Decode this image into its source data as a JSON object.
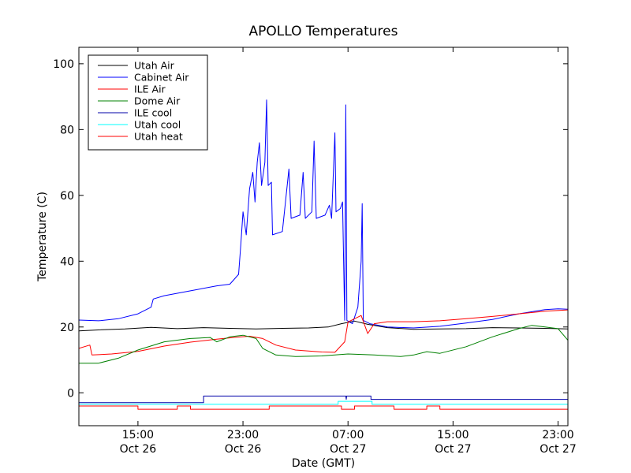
{
  "chart_data": {
    "type": "line",
    "title": "APOLLO Temperatures",
    "xlabel": "Date (GMT)",
    "ylabel": "Temperature (C)",
    "x_domain": [
      "2008-10-26T10:30",
      "2008-10-27T23:45"
    ],
    "ylim": [
      -10,
      105
    ],
    "grid": false,
    "legend_position": "top-left",
    "x_ticks": [
      {
        "t": "2008-10-26T15:00",
        "line1": "15:00",
        "line2": "Oct 26"
      },
      {
        "t": "2008-10-26T23:00",
        "line1": "23:00",
        "line2": "Oct 26"
      },
      {
        "t": "2008-10-27T07:00",
        "line1": "07:00",
        "line2": "Oct 27"
      },
      {
        "t": "2008-10-27T15:00",
        "line1": "15:00",
        "line2": "Oct 27"
      },
      {
        "t": "2008-10-27T23:00",
        "line1": "23:00",
        "line2": "Oct 27"
      }
    ],
    "y_ticks": [
      0,
      20,
      40,
      60,
      80,
      100
    ],
    "series": [
      {
        "name": "Utah Air",
        "color": "#000000",
        "points": [
          [
            "2008-10-26T10:30",
            18.8
          ],
          [
            "2008-10-26T12:00",
            19.1
          ],
          [
            "2008-10-26T14:00",
            19.4
          ],
          [
            "2008-10-26T16:00",
            19.9
          ],
          [
            "2008-10-26T18:00",
            19.5
          ],
          [
            "2008-10-26T20:00",
            19.8
          ],
          [
            "2008-10-26T22:00",
            19.6
          ],
          [
            "2008-10-27T00:00",
            19.4
          ],
          [
            "2008-10-27T02:00",
            19.6
          ],
          [
            "2008-10-27T04:00",
            19.7
          ],
          [
            "2008-10-27T05:30",
            20.0
          ],
          [
            "2008-10-27T06:30",
            21.0
          ],
          [
            "2008-10-27T07:30",
            21.8
          ],
          [
            "2008-10-27T08:30",
            20.8
          ],
          [
            "2008-10-27T10:00",
            19.8
          ],
          [
            "2008-10-27T12:00",
            19.3
          ],
          [
            "2008-10-27T14:00",
            19.4
          ],
          [
            "2008-10-27T16:00",
            19.5
          ],
          [
            "2008-10-27T18:00",
            19.8
          ],
          [
            "2008-10-27T20:00",
            19.7
          ],
          [
            "2008-10-27T22:00",
            19.6
          ],
          [
            "2008-10-27T23:45",
            19.4
          ]
        ]
      },
      {
        "name": "Cabinet Air",
        "color": "#0000ff",
        "points": [
          [
            "2008-10-26T10:30",
            22.1
          ],
          [
            "2008-10-26T12:00",
            21.9
          ],
          [
            "2008-10-26T13:30",
            22.5
          ],
          [
            "2008-10-26T15:00",
            24.0
          ],
          [
            "2008-10-26T16:00",
            26.0
          ],
          [
            "2008-10-26T16:10",
            28.5
          ],
          [
            "2008-10-26T17:00",
            29.5
          ],
          [
            "2008-10-26T19:00",
            31.0
          ],
          [
            "2008-10-26T21:00",
            32.5
          ],
          [
            "2008-10-26T22:00",
            33.0
          ],
          [
            "2008-10-26T22:40",
            36.0
          ],
          [
            "2008-10-26T22:50",
            45.0
          ],
          [
            "2008-10-26T23:00",
            55.0
          ],
          [
            "2008-10-26T23:15",
            48.0
          ],
          [
            "2008-10-26T23:30",
            62.0
          ],
          [
            "2008-10-26T23:45",
            67.0
          ],
          [
            "2008-10-26T23:55",
            58.0
          ],
          [
            "2008-10-27T00:05",
            70.0
          ],
          [
            "2008-10-27T00:15",
            76.0
          ],
          [
            "2008-10-27T00:25",
            63.0
          ],
          [
            "2008-10-27T00:40",
            70.0
          ],
          [
            "2008-10-27T00:48",
            89.0
          ],
          [
            "2008-10-27T00:55",
            63.0
          ],
          [
            "2008-10-27T01:10",
            64.0
          ],
          [
            "2008-10-27T01:15",
            48.0
          ],
          [
            "2008-10-27T02:00",
            49.0
          ],
          [
            "2008-10-27T02:30",
            68.0
          ],
          [
            "2008-10-27T02:40",
            53.0
          ],
          [
            "2008-10-27T03:20",
            54.0
          ],
          [
            "2008-10-27T03:35",
            67.0
          ],
          [
            "2008-10-27T03:45",
            53.0
          ],
          [
            "2008-10-27T04:15",
            55.0
          ],
          [
            "2008-10-27T04:25",
            76.5
          ],
          [
            "2008-10-27T04:35",
            53.0
          ],
          [
            "2008-10-27T05:15",
            54.0
          ],
          [
            "2008-10-27T05:35",
            57.0
          ],
          [
            "2008-10-27T05:45",
            53.0
          ],
          [
            "2008-10-27T06:00",
            79.0
          ],
          [
            "2008-10-27T06:05",
            55.0
          ],
          [
            "2008-10-27T06:25",
            56.0
          ],
          [
            "2008-10-27T06:35",
            58.0
          ],
          [
            "2008-10-27T06:45",
            22.0
          ],
          [
            "2008-10-27T06:50",
            87.5
          ],
          [
            "2008-10-27T06:55",
            22.0
          ],
          [
            "2008-10-27T07:20",
            21.0
          ],
          [
            "2008-10-27T07:45",
            26.0
          ],
          [
            "2008-10-27T08:00",
            40.0
          ],
          [
            "2008-10-27T08:05",
            57.5
          ],
          [
            "2008-10-27T08:10",
            22.0
          ],
          [
            "2008-10-27T08:40",
            21.0
          ],
          [
            "2008-10-27T10:00",
            20.0
          ],
          [
            "2008-10-27T12:00",
            19.7
          ],
          [
            "2008-10-27T14:00",
            20.2
          ],
          [
            "2008-10-27T16:00",
            21.2
          ],
          [
            "2008-10-27T18:00",
            22.3
          ],
          [
            "2008-10-27T20:00",
            24.0
          ],
          [
            "2008-10-27T22:00",
            25.3
          ],
          [
            "2008-10-27T23:00",
            25.5
          ],
          [
            "2008-10-27T23:45",
            25.4
          ]
        ]
      },
      {
        "name": "ILE Air",
        "color": "#ff0000",
        "points": [
          [
            "2008-10-26T10:30",
            13.5
          ],
          [
            "2008-10-26T11:20",
            14.5
          ],
          [
            "2008-10-26T11:30",
            11.5
          ],
          [
            "2008-10-26T13:00",
            11.8
          ],
          [
            "2008-10-26T15:00",
            12.6
          ],
          [
            "2008-10-26T17:00",
            14.2
          ],
          [
            "2008-10-26T19:00",
            15.4
          ],
          [
            "2008-10-26T21:00",
            16.3
          ],
          [
            "2008-10-26T22:30",
            16.9
          ],
          [
            "2008-10-26T23:30",
            17.2
          ],
          [
            "2008-10-27T00:30",
            16.5
          ],
          [
            "2008-10-27T01:30",
            14.5
          ],
          [
            "2008-10-27T03:00",
            13.0
          ],
          [
            "2008-10-27T05:00",
            12.4
          ],
          [
            "2008-10-27T06:00",
            12.3
          ],
          [
            "2008-10-27T06:45",
            15.5
          ],
          [
            "2008-10-27T07:00",
            21.5
          ],
          [
            "2008-10-27T07:30",
            22.5
          ],
          [
            "2008-10-27T08:00",
            23.5
          ],
          [
            "2008-10-27T08:30",
            18.0
          ],
          [
            "2008-10-27T09:00",
            21.0
          ],
          [
            "2008-10-27T10:00",
            21.6
          ],
          [
            "2008-10-27T12:00",
            21.6
          ],
          [
            "2008-10-27T14:00",
            21.9
          ],
          [
            "2008-10-27T16:00",
            22.5
          ],
          [
            "2008-10-27T18:00",
            23.2
          ],
          [
            "2008-10-27T20:00",
            24.0
          ],
          [
            "2008-10-27T22:00",
            24.8
          ],
          [
            "2008-10-27T23:45",
            25.2
          ]
        ]
      },
      {
        "name": "Dome Air",
        "color": "#008000",
        "points": [
          [
            "2008-10-26T10:30",
            9.0
          ],
          [
            "2008-10-26T12:00",
            9.0
          ],
          [
            "2008-10-26T13:30",
            10.5
          ],
          [
            "2008-10-26T15:00",
            13.0
          ],
          [
            "2008-10-26T17:00",
            15.5
          ],
          [
            "2008-10-26T19:00",
            16.5
          ],
          [
            "2008-10-26T20:30",
            16.8
          ],
          [
            "2008-10-26T21:00",
            15.5
          ],
          [
            "2008-10-26T22:00",
            17.0
          ],
          [
            "2008-10-26T23:00",
            17.5
          ],
          [
            "2008-10-27T00:00",
            16.5
          ],
          [
            "2008-10-27T00:30",
            13.5
          ],
          [
            "2008-10-27T01:30",
            11.5
          ],
          [
            "2008-10-27T03:00",
            11.0
          ],
          [
            "2008-10-27T05:00",
            11.2
          ],
          [
            "2008-10-27T07:00",
            11.8
          ],
          [
            "2008-10-27T09:00",
            11.5
          ],
          [
            "2008-10-27T11:00",
            11.0
          ],
          [
            "2008-10-27T12:00",
            11.5
          ],
          [
            "2008-10-27T13:00",
            12.5
          ],
          [
            "2008-10-27T14:00",
            12.0
          ],
          [
            "2008-10-27T16:00",
            14.0
          ],
          [
            "2008-10-27T18:00",
            17.0
          ],
          [
            "2008-10-27T20:00",
            19.5
          ],
          [
            "2008-10-27T21:00",
            20.5
          ],
          [
            "2008-10-27T22:00",
            20.0
          ],
          [
            "2008-10-27T23:00",
            19.5
          ],
          [
            "2008-10-27T23:45",
            16.0
          ]
        ]
      },
      {
        "name": "ILE cool",
        "color": "#0000aa",
        "points": [
          [
            "2008-10-26T10:30",
            -3.0
          ],
          [
            "2008-10-26T20:00",
            -3.0
          ],
          [
            "2008-10-26T20:00",
            -1.0
          ],
          [
            "2008-10-27T06:50",
            -1.0
          ],
          [
            "2008-10-27T06:52",
            -2.0
          ],
          [
            "2008-10-27T06:54",
            -1.0
          ],
          [
            "2008-10-27T08:45",
            -1.0
          ],
          [
            "2008-10-27T08:45",
            -2.0
          ],
          [
            "2008-10-27T23:45",
            -2.0
          ]
        ]
      },
      {
        "name": "Utah cool",
        "color": "#00ffff",
        "points": [
          [
            "2008-10-26T10:30",
            -3.5
          ],
          [
            "2008-10-27T06:15",
            -3.5
          ],
          [
            "2008-10-27T06:15",
            -2.6
          ],
          [
            "2008-10-27T08:50",
            -2.6
          ],
          [
            "2008-10-27T08:50",
            -3.5
          ],
          [
            "2008-10-27T23:45",
            -3.5
          ]
        ]
      },
      {
        "name": "Utah heat",
        "color": "#ff0000",
        "points": [
          [
            "2008-10-26T10:30",
            -4.0
          ],
          [
            "2008-10-26T15:00",
            -4.0
          ],
          [
            "2008-10-26T15:00",
            -5.0
          ],
          [
            "2008-10-26T18:00",
            -5.0
          ],
          [
            "2008-10-26T18:00",
            -4.0
          ],
          [
            "2008-10-26T19:00",
            -4.0
          ],
          [
            "2008-10-26T19:00",
            -5.0
          ],
          [
            "2008-10-27T01:00",
            -5.0
          ],
          [
            "2008-10-27T01:00",
            -4.0
          ],
          [
            "2008-10-27T06:30",
            -4.0
          ],
          [
            "2008-10-27T06:30",
            -5.0
          ],
          [
            "2008-10-27T07:30",
            -5.0
          ],
          [
            "2008-10-27T07:30",
            -4.0
          ],
          [
            "2008-10-27T10:30",
            -4.0
          ],
          [
            "2008-10-27T10:30",
            -5.0
          ],
          [
            "2008-10-27T13:00",
            -5.0
          ],
          [
            "2008-10-27T13:00",
            -4.0
          ],
          [
            "2008-10-27T14:00",
            -4.0
          ],
          [
            "2008-10-27T14:00",
            -5.0
          ],
          [
            "2008-10-27T23:45",
            -5.0
          ]
        ]
      }
    ]
  }
}
